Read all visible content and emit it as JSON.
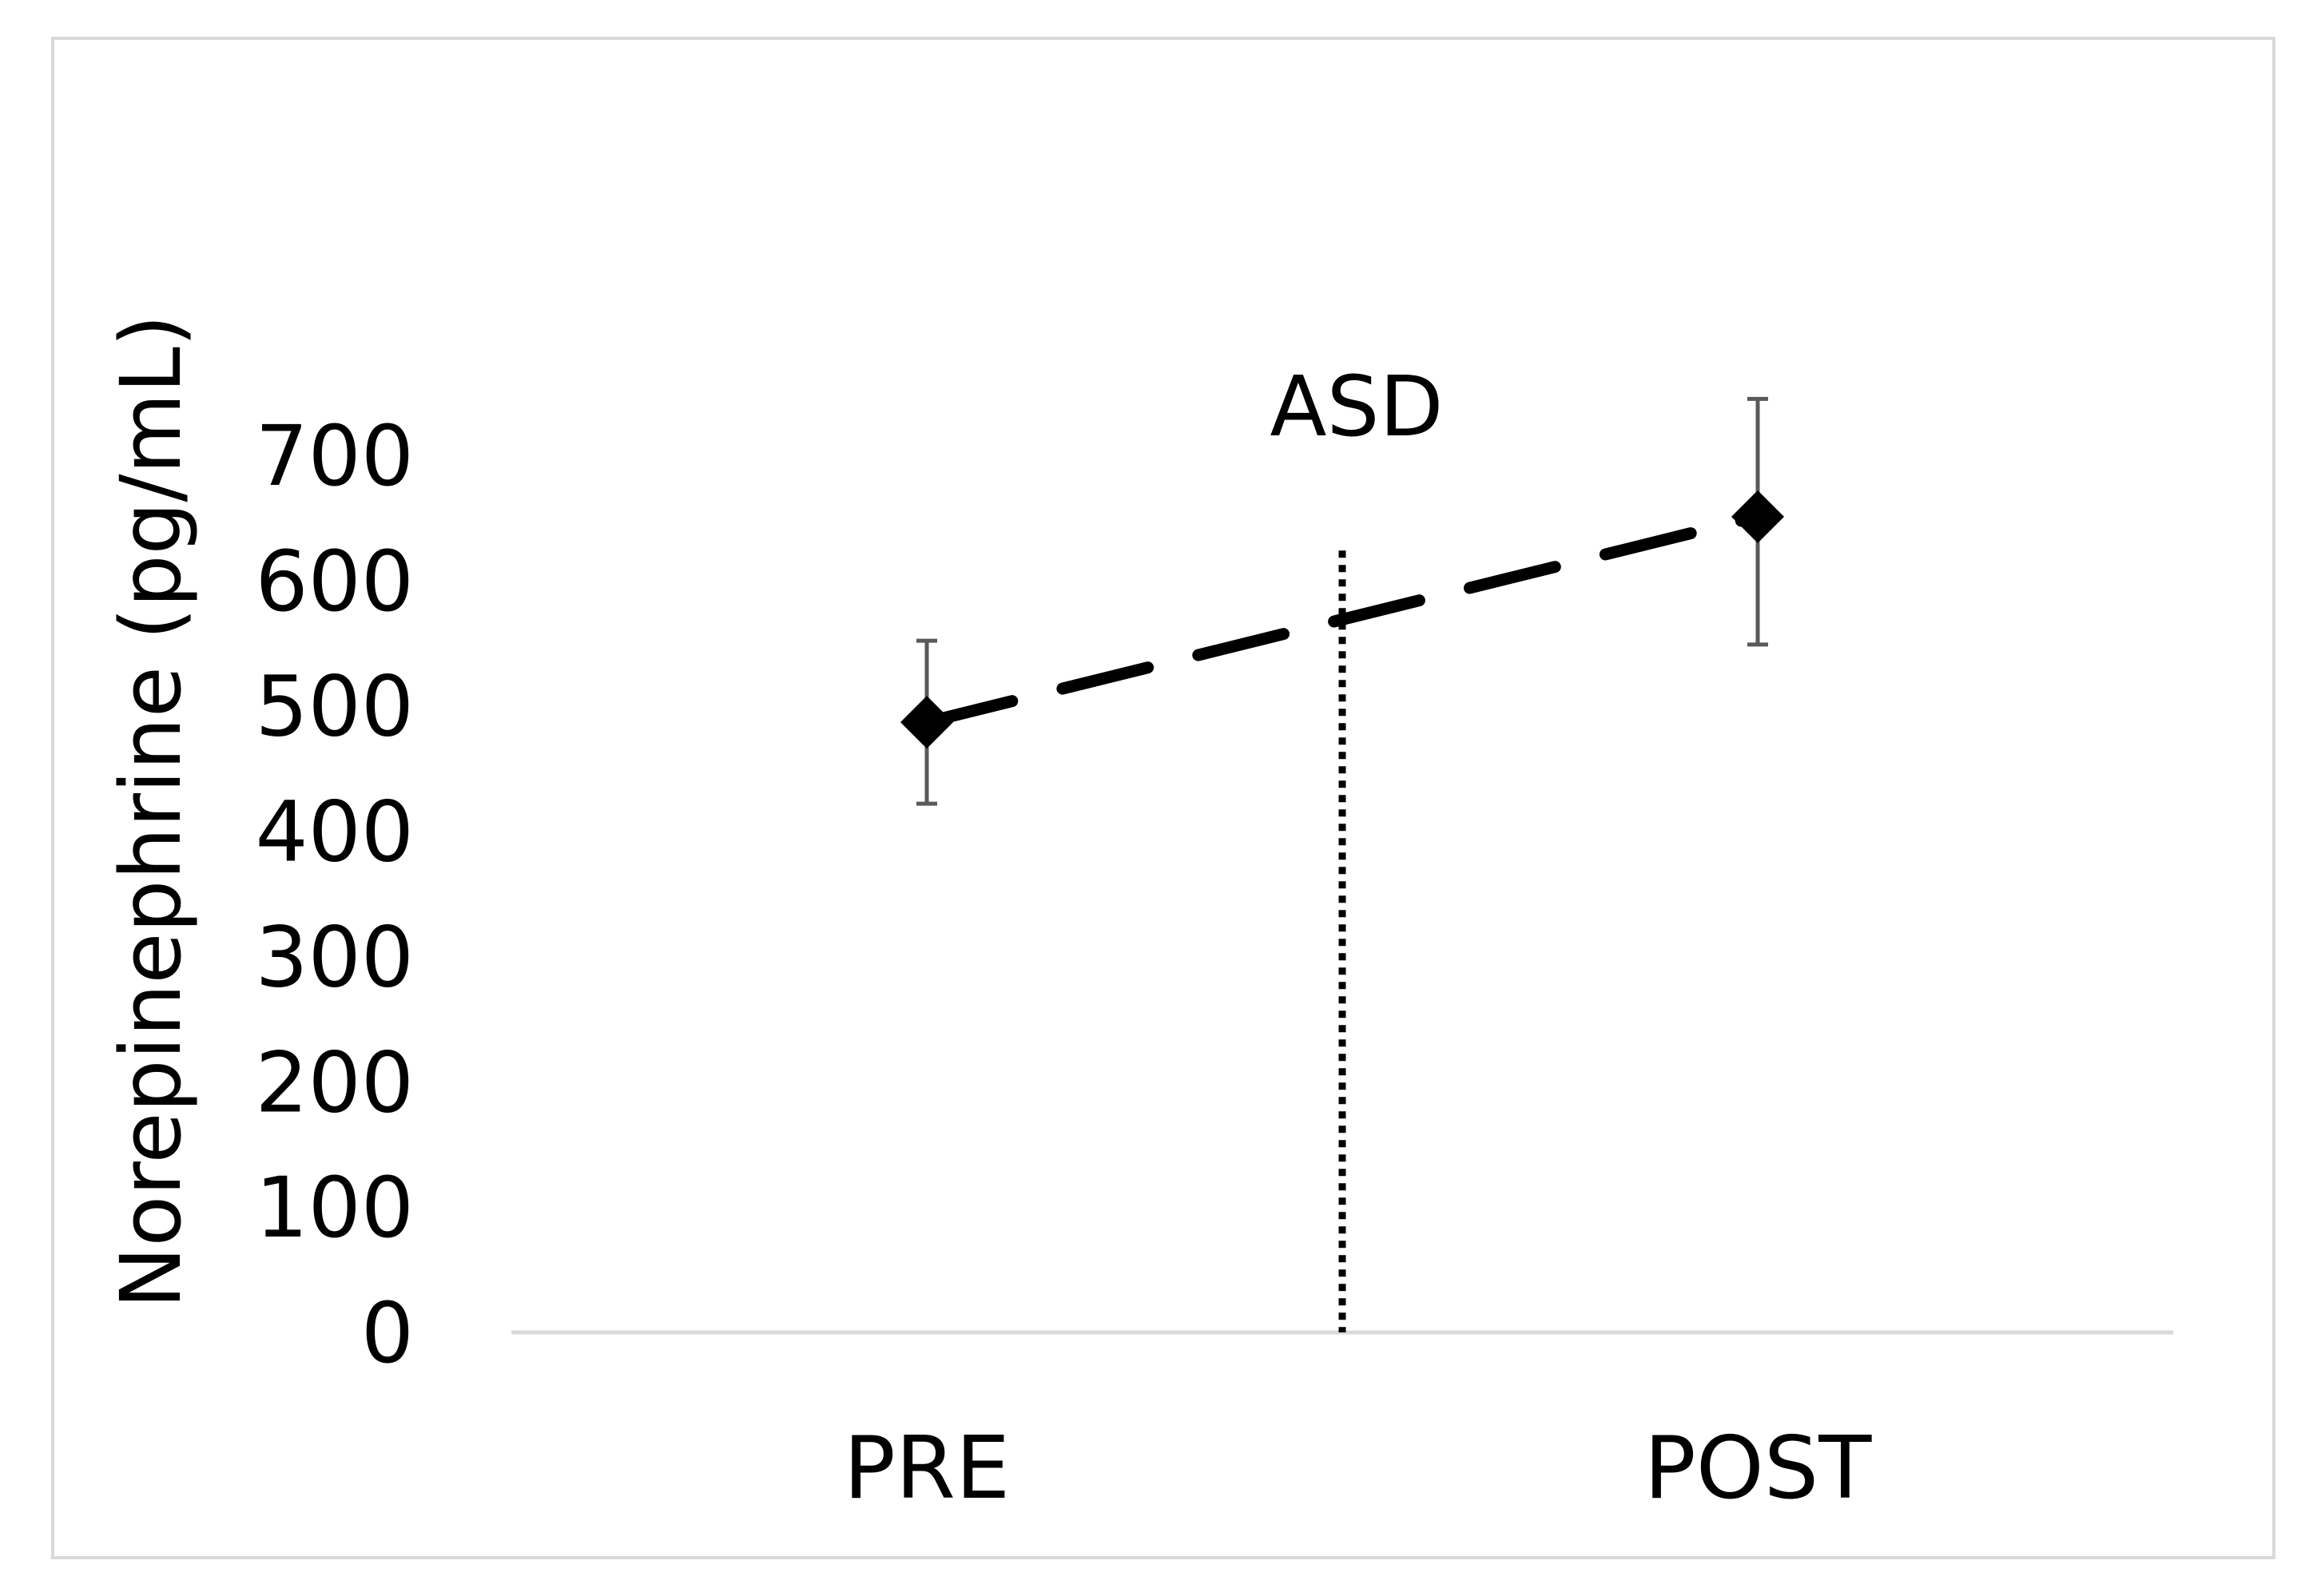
{
  "chart_data": {
    "type": "line",
    "title": "",
    "xlabel": "",
    "ylabel": "Norepinephrine (pg/mL)",
    "categories": [
      "PRE",
      "POST"
    ],
    "series": [
      {
        "values": [
          487,
          651
        ],
        "error_low": [
          422,
          549
        ],
        "error_high": [
          552,
          745
        ],
        "line_style": "dashed",
        "marker": "diamond",
        "color": "#000000"
      }
    ],
    "ylim": [
      0,
      700
    ],
    "yticks": [
      "0",
      "100",
      "200",
      "300",
      "400",
      "500",
      "600",
      "700"
    ],
    "annotations": [
      {
        "text": "ASD",
        "type": "vertical-dotted-line",
        "position": "between PRE and POST"
      }
    ],
    "grid": false,
    "legend": "none",
    "colors": {
      "line": "#000000",
      "errorbar": "#595959",
      "axis": "#d9d9d9",
      "frame": "#d9d9d9"
    }
  }
}
